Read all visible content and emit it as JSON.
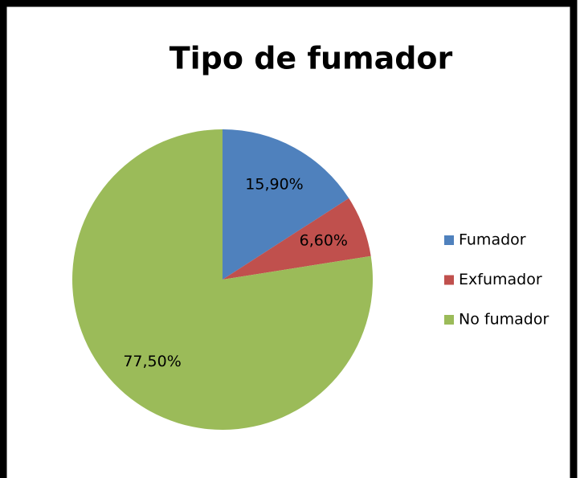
{
  "chart_data": {
    "type": "pie",
    "title": "Tipo de fumador",
    "categories": [
      "Fumador",
      "Exfumador",
      "No fumador"
    ],
    "values": [
      15.9,
      6.6,
      77.5
    ],
    "value_labels": [
      "15,90%",
      "6,60%",
      "77,50%"
    ],
    "colors": [
      "#4f81bd",
      "#c0504d",
      "#9bbb59"
    ],
    "legend": "right"
  }
}
